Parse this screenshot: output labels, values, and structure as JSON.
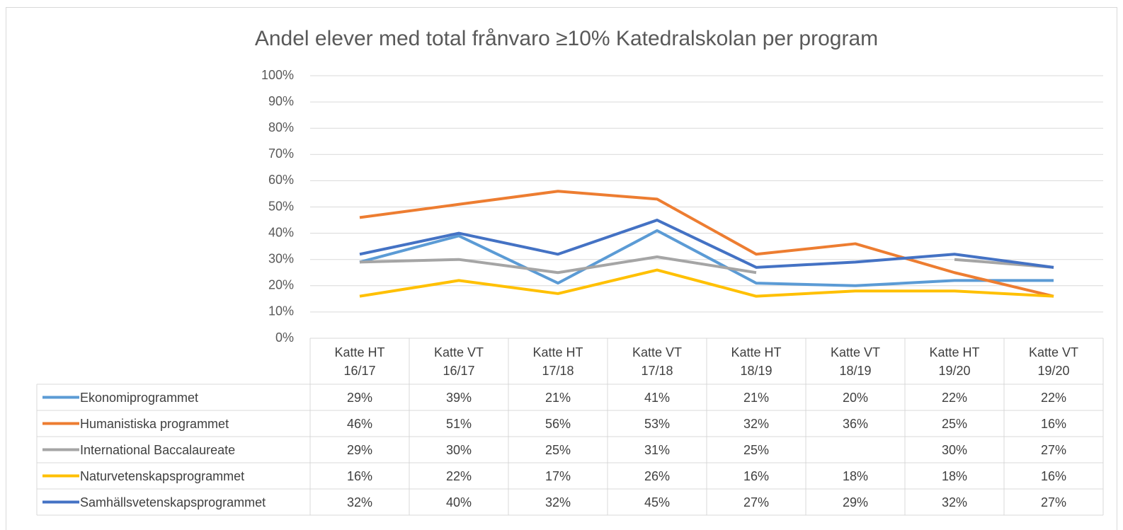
{
  "chart_data": {
    "type": "line",
    "title": "Andel elever med total frånvaro ≥10% Katedralskolan per program",
    "categories": [
      "Katte HT 16/17",
      "Katte VT 16/17",
      "Katte HT 17/18",
      "Katte VT 17/18",
      "Katte HT 18/19",
      "Katte VT 18/19",
      "Katte HT 19/20",
      "Katte VT 19/20"
    ],
    "series": [
      {
        "name": "Ekonomiprogrammet",
        "color": "#5b9bd5",
        "values": [
          29,
          39,
          21,
          41,
          21,
          20,
          22,
          22
        ],
        "value_labels": [
          "29%",
          "39%",
          "21%",
          "41%",
          "21%",
          "20%",
          "22%",
          "22%"
        ]
      },
      {
        "name": "Humanistiska programmet",
        "color": "#ed7d31",
        "values": [
          46,
          51,
          56,
          53,
          32,
          36,
          25,
          16
        ],
        "value_labels": [
          "46%",
          "51%",
          "56%",
          "53%",
          "32%",
          "36%",
          "25%",
          "16%"
        ]
      },
      {
        "name": "International Baccalaureate",
        "color": "#a5a5a5",
        "values": [
          29,
          30,
          25,
          31,
          25,
          null,
          30,
          27
        ],
        "value_labels": [
          "29%",
          "30%",
          "25%",
          "31%",
          "25%",
          null,
          "30%",
          "27%"
        ]
      },
      {
        "name": "Naturvetenskapsprogrammet",
        "color": "#ffc000",
        "values": [
          16,
          22,
          17,
          26,
          16,
          18,
          18,
          16
        ],
        "value_labels": [
          "16%",
          "22%",
          "17%",
          "26%",
          "16%",
          "18%",
          "18%",
          "16%"
        ]
      },
      {
        "name": "Samhällsvetenskapsprogrammet",
        "color": "#4472c4",
        "values": [
          32,
          40,
          32,
          45,
          27,
          29,
          32,
          27
        ],
        "value_labels": [
          "32%",
          "40%",
          "32%",
          "45%",
          "27%",
          "29%",
          "32%",
          "27%"
        ]
      }
    ],
    "ylim": [
      0,
      100
    ],
    "yticks": [
      {
        "value": 0,
        "label": "0%"
      },
      {
        "value": 10,
        "label": "10%"
      },
      {
        "value": 20,
        "label": "20%"
      },
      {
        "value": 30,
        "label": "30%"
      },
      {
        "value": 40,
        "label": "40%"
      },
      {
        "value": 50,
        "label": "50%"
      },
      {
        "value": 60,
        "label": "60%"
      },
      {
        "value": 70,
        "label": "70%"
      },
      {
        "value": 80,
        "label": "80%"
      },
      {
        "value": 90,
        "label": "90%"
      },
      {
        "value": 100,
        "label": "100%"
      }
    ],
    "grid": true
  }
}
